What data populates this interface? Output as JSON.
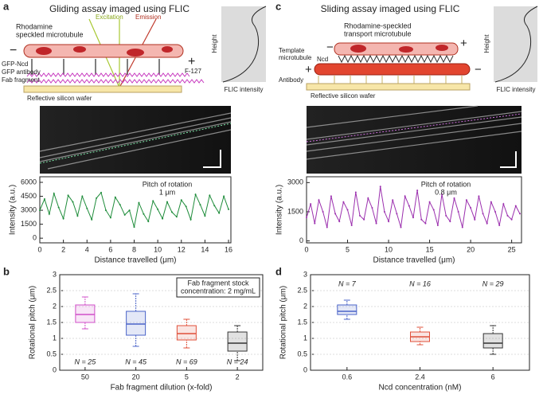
{
  "panel_labels": [
    "a",
    "b",
    "c",
    "d"
  ],
  "diagram_a": {
    "title": "Gliding assay imaged using FLIC",
    "microtubule": [
      "Rhodamine",
      "speckled microtubule"
    ],
    "excitation": "Excitation",
    "emission": "Emission",
    "minus": "−",
    "plus": "+",
    "gfp_ncd": "GFP-Ncd",
    "gfp_antibody": "GFP antibody",
    "fab": "Fab fragment",
    "f127": "F-127",
    "wafer": "Reflective silicon wafer",
    "height": "Height",
    "flic": "FLIC  intensity"
  },
  "diagram_c": {
    "title": "Sliding assay imaged using FLIC",
    "transport": [
      "Rhodamine-speckled",
      "transport microtubule"
    ],
    "template": [
      "Template",
      "microtubule"
    ],
    "ncd": "Ncd",
    "antibody": "Antibody",
    "minus_top": "−",
    "plus_top": "+",
    "plus_left": "+",
    "minus_right": "−",
    "wafer": "Reflective silicon wafer",
    "height": "Height",
    "flic": "FLIC  intensity"
  },
  "chart_data": [
    {
      "type": "line",
      "ylabel": "Intensity (a.u.)",
      "xlabel": "Distance travelled (μm)",
      "annotation": [
        "Pitch of rotation",
        "1 μm"
      ],
      "color": "#1e8c3a",
      "x": [
        0,
        0.4,
        0.8,
        1.2,
        1.6,
        2,
        2.4,
        2.8,
        3.2,
        3.6,
        4,
        4.4,
        4.8,
        5.2,
        5.6,
        6,
        6.4,
        6.8,
        7.2,
        7.6,
        8,
        8.4,
        8.8,
        9.2,
        9.6,
        10,
        10.4,
        10.8,
        11.2,
        11.6,
        12,
        12.4,
        12.8,
        13.2,
        13.6,
        14,
        14.4,
        14.8,
        15.2,
        15.6,
        16
      ],
      "values": [
        3000,
        4200,
        2600,
        4800,
        3300,
        2100,
        4600,
        3900,
        2400,
        4500,
        3200,
        2000,
        4300,
        4900,
        3000,
        2200,
        4400,
        3600,
        2500,
        3000,
        1200,
        3800,
        2600,
        1800,
        4000,
        3100,
        2100,
        3900,
        2800,
        2300,
        4100,
        3400,
        2000,
        4700,
        3600,
        2400,
        4600,
        3500,
        2700,
        4500,
        3100
      ],
      "xlim": [
        0,
        16.2
      ],
      "xticks": [
        0,
        2,
        4,
        6,
        8,
        10,
        12,
        14,
        16
      ],
      "ylim": [
        -500,
        6600
      ],
      "yticks": [
        0,
        1500,
        3000,
        4500,
        6000
      ]
    },
    {
      "type": "line",
      "ylabel": "Intensity (a.u.)",
      "xlabel": "Distance travelled (μm)",
      "annotation": [
        "Pitch of rotation",
        "0.8 μm"
      ],
      "color": "#9b2fae",
      "x": [
        0,
        0.5,
        1,
        1.5,
        2,
        2.5,
        3,
        3.5,
        4,
        4.5,
        5,
        5.5,
        6,
        6.5,
        7,
        7.5,
        8,
        8.5,
        9,
        9.5,
        10,
        10.5,
        11,
        11.5,
        12,
        12.5,
        13,
        13.5,
        14,
        14.5,
        15,
        15.5,
        16,
        16.5,
        17,
        17.5,
        18,
        18.5,
        19,
        19.5,
        20,
        20.5,
        21,
        21.5,
        22,
        22.5,
        23,
        23.5,
        24,
        24.5,
        25,
        25.5,
        26
      ],
      "values": [
        1200,
        1900,
        900,
        2100,
        1500,
        700,
        2300,
        1400,
        1000,
        2000,
        1600,
        800,
        2500,
        1300,
        1100,
        2200,
        1700,
        900,
        2800,
        1500,
        1000,
        2100,
        1400,
        700,
        2300,
        1800,
        1200,
        2600,
        1100,
        900,
        2000,
        1600,
        800,
        2400,
        1300,
        1000,
        2200,
        1500,
        700,
        2100,
        1700,
        1100,
        2300,
        1400,
        900,
        2000,
        1500,
        800,
        1900,
        1300,
        1100,
        1800,
        1400
      ],
      "xlim": [
        0,
        26.2
      ],
      "xticks": [
        0,
        5,
        10,
        15,
        20,
        25
      ],
      "ylim": [
        -100,
        3300
      ],
      "yticks": [
        0,
        1500,
        3000
      ]
    },
    {
      "type": "box",
      "ylabel": "Rotational pitch (μm)",
      "xlabel": "Fab fragment dilution (x-fold)",
      "note": [
        "Fab fragment stock",
        "concentration: 2 mg/mL"
      ],
      "categories": [
        "50",
        "20",
        "5",
        "2"
      ],
      "n_labels": [
        "N = 25",
        "N = 45",
        "N = 69",
        "N = 24"
      ],
      "boxes": [
        {
          "min": 1.3,
          "q1": 1.5,
          "median": 1.75,
          "q3": 2.05,
          "max": 2.3,
          "color": "#d04fc8"
        },
        {
          "min": 0.75,
          "q1": 1.1,
          "median": 1.45,
          "q3": 1.85,
          "max": 2.4,
          "color": "#4a63c8"
        },
        {
          "min": 0.7,
          "q1": 0.95,
          "median": 1.15,
          "q3": 1.4,
          "max": 1.6,
          "color": "#e0503a"
        },
        {
          "min": 0.3,
          "q1": 0.6,
          "median": 0.85,
          "q3": 1.2,
          "max": 1.4,
          "color": "#333333"
        }
      ],
      "ylim": [
        0,
        3
      ],
      "yticks": [
        0,
        0.5,
        1,
        1.5,
        2,
        2.5,
        3
      ],
      "grid": true
    },
    {
      "type": "box",
      "ylabel": "Rotational pitch (μm)",
      "xlabel": "Ncd concentration (nM)",
      "categories": [
        "0.6",
        "2.4",
        "6"
      ],
      "n_labels": [
        "N = 7",
        "N = 16",
        "N = 29"
      ],
      "boxes": [
        {
          "min": 1.6,
          "q1": 1.75,
          "median": 1.85,
          "q3": 2.05,
          "max": 2.2,
          "color": "#4a63c8"
        },
        {
          "min": 0.8,
          "q1": 0.9,
          "median": 1.05,
          "q3": 1.2,
          "max": 1.35,
          "color": "#e0503a"
        },
        {
          "min": 0.5,
          "q1": 0.7,
          "median": 0.85,
          "q3": 1.15,
          "max": 1.4,
          "color": "#333333"
        }
      ],
      "ylim": [
        0,
        3
      ],
      "yticks": [
        0,
        0.5,
        1,
        1.5,
        2,
        2.5,
        3
      ],
      "grid": true
    }
  ]
}
